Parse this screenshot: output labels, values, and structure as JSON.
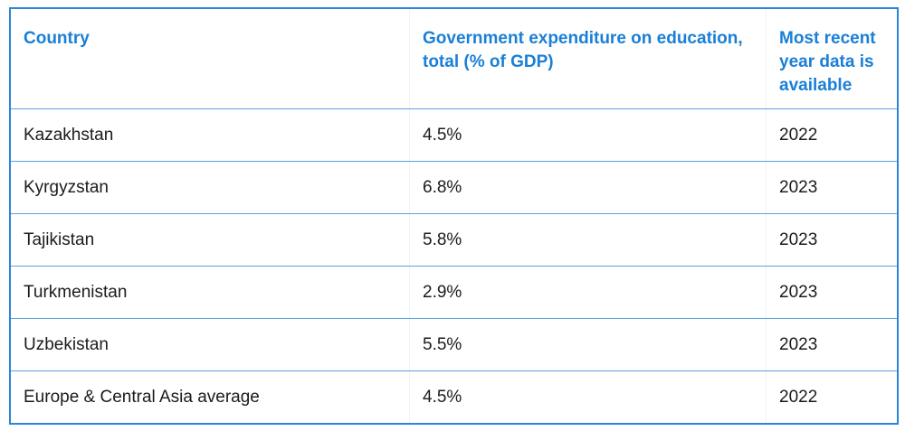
{
  "table": {
    "headers": [
      "Country",
      "Government expenditure on education, total (% of GDP)",
      "Most recent year data is available"
    ],
    "rows": [
      {
        "country": "Kazakhstan",
        "expenditure": "4.5%",
        "year": "2022"
      },
      {
        "country": "Kyrgyzstan",
        "expenditure": "6.8%",
        "year": "2023"
      },
      {
        "country": "Tajikistan",
        "expenditure": "5.8%",
        "year": "2023"
      },
      {
        "country": "Turkmenistan",
        "expenditure": "2.9%",
        "year": "2023"
      },
      {
        "country": "Uzbekistan",
        "expenditure": "5.5%",
        "year": "2023"
      },
      {
        "country": "Europe & Central Asia average",
        "expenditure": "4.5%",
        "year": "2022"
      }
    ]
  }
}
